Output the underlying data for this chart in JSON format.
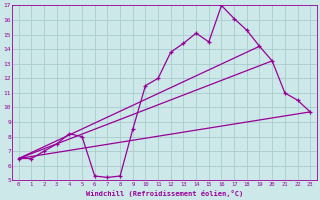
{
  "xlabel": "Windchill (Refroidissement éolien,°C)",
  "xlim": [
    -0.5,
    23.5
  ],
  "ylim": [
    5,
    17
  ],
  "xticks": [
    0,
    1,
    2,
    3,
    4,
    5,
    6,
    7,
    8,
    9,
    10,
    11,
    12,
    13,
    14,
    15,
    16,
    17,
    18,
    19,
    20,
    21,
    22,
    23
  ],
  "yticks": [
    5,
    6,
    7,
    8,
    9,
    10,
    11,
    12,
    13,
    14,
    15,
    16,
    17
  ],
  "bg_color": "#cce8e8",
  "line_color": "#990099",
  "grid_color": "#aacccc",
  "line1_x": [
    0,
    1,
    2,
    3,
    4,
    5,
    6,
    7,
    8,
    9,
    10,
    11,
    12,
    13,
    14,
    15,
    16,
    17,
    18,
    19,
    20,
    21,
    22,
    23
  ],
  "line1_y": [
    6.5,
    6.5,
    7.0,
    7.5,
    8.2,
    8.0,
    5.3,
    5.2,
    5.3,
    8.5,
    11.5,
    12.0,
    13.8,
    14.4,
    15.1,
    14.5,
    17.0,
    16.1,
    15.3,
    14.2,
    13.2,
    11.0,
    10.5,
    9.7
  ],
  "line2_x": [
    0,
    23
  ],
  "line2_y": [
    6.5,
    9.7
  ],
  "line3_x": [
    0,
    20
  ],
  "line3_y": [
    6.5,
    13.2
  ],
  "line4_x": [
    0,
    19
  ],
  "line4_y": [
    6.5,
    14.2
  ]
}
